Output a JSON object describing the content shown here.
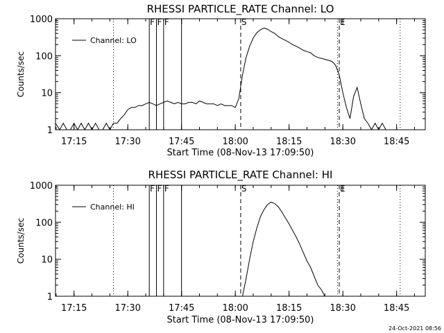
{
  "footer": {
    "timestamp": "24-Oct-2021 08:56"
  },
  "chart_data": [
    {
      "type": "line",
      "title": "RHESSI PARTICLE_RATE Channel: LO",
      "xlabel": "Start Time (08-Nov-13 17:09:50)",
      "ylabel": "Counts/sec",
      "scale": {
        "y": "log"
      },
      "xlim": [
        "17:09:50",
        "18:53:00"
      ],
      "ylim": [
        1,
        1000
      ],
      "x_ticks": [
        "17:15",
        "17:30",
        "17:45",
        "18:00",
        "18:15",
        "18:30",
        "18:45"
      ],
      "y_ticks": [
        "1",
        "10",
        "100",
        "1000"
      ],
      "legend": {
        "position": "top-left",
        "entries": [
          "Channel: LO"
        ]
      },
      "series": [
        {
          "name": "Channel: LO",
          "x": [
            "17:09:50",
            "17:11:00",
            "17:12:00",
            "17:13:00",
            "17:14:00",
            "17:15:00",
            "17:16:00",
            "17:17:00",
            "17:18:00",
            "17:19:00",
            "17:20:00",
            "17:21:00",
            "17:22:00",
            "17:23:00",
            "17:24:00",
            "17:25:00",
            "17:26:00",
            "17:27:00",
            "17:28:00",
            "17:29:00",
            "17:30:00",
            "17:31:00",
            "17:32:00",
            "17:33:00",
            "17:34:00",
            "17:35:00",
            "17:36:00",
            "17:37:00",
            "17:38:00",
            "17:39:00",
            "17:40:00",
            "17:41:00",
            "17:42:00",
            "17:43:00",
            "17:44:00",
            "17:45:00",
            "17:46:00",
            "17:47:00",
            "17:48:00",
            "17:49:00",
            "17:50:00",
            "17:51:00",
            "17:52:00",
            "17:53:00",
            "17:54:00",
            "17:55:00",
            "17:56:00",
            "17:57:00",
            "17:58:00",
            "17:59:00",
            "18:00:00",
            "18:01:00",
            "18:02:00",
            "18:03:00",
            "18:04:00",
            "18:05:00",
            "18:06:00",
            "18:07:00",
            "18:08:00",
            "18:09:00",
            "18:10:00",
            "18:11:00",
            "18:12:00",
            "18:13:00",
            "18:14:00",
            "18:15:00",
            "18:16:00",
            "18:17:00",
            "18:18:00",
            "18:19:00",
            "18:20:00",
            "18:21:00",
            "18:22:00",
            "18:23:00",
            "18:24:00",
            "18:25:00",
            "18:26:00",
            "18:27:00",
            "18:28:00",
            "18:29:00",
            "18:30:00",
            "18:31:00",
            "18:32:00",
            "18:33:00",
            "18:34:00",
            "18:35:00",
            "18:36:00",
            "18:37:00",
            "18:38:00",
            "18:39:00",
            "18:40:00",
            "18:41:00",
            "18:42:00"
          ],
          "y": [
            1.5,
            1,
            1.5,
            1,
            1,
            1.5,
            1,
            1.5,
            1,
            1.5,
            1,
            1.5,
            1,
            1,
            1.5,
            1,
            1.5,
            1.5,
            2,
            2.5,
            3.5,
            4,
            4,
            4.5,
            4.5,
            5,
            5.5,
            5,
            4.5,
            5,
            5.5,
            6,
            5.5,
            5,
            5.5,
            5,
            5,
            5.5,
            5.5,
            5,
            6,
            5.5,
            5,
            5,
            5,
            4.5,
            5,
            4.5,
            4.5,
            4.5,
            4,
            7,
            30,
            90,
            180,
            300,
            420,
            500,
            560,
            520,
            450,
            400,
            330,
            290,
            260,
            230,
            200,
            180,
            160,
            140,
            130,
            120,
            100,
            90,
            85,
            80,
            75,
            70,
            55,
            30,
            10,
            4,
            2,
            8,
            14,
            5,
            2,
            1.5,
            1,
            1.5,
            1,
            1.5,
            1
          ]
        }
      ],
      "markers": [
        {
          "x": "17:26:00",
          "style": "dotted",
          "label": ""
        },
        {
          "x": "17:36:00",
          "style": "solid",
          "label": "F"
        },
        {
          "x": "17:38:00",
          "style": "solid",
          "label": "F"
        },
        {
          "x": "17:40:00",
          "style": "solid",
          "label": "F"
        },
        {
          "x": "17:45:00",
          "style": "solid",
          "label": ""
        },
        {
          "x": "18:01:30",
          "style": "dashed",
          "label": "S"
        },
        {
          "x": "18:28:30",
          "style": "dotted",
          "label": ""
        },
        {
          "x": "18:29:00",
          "style": "dashed",
          "label": "E"
        },
        {
          "x": "18:46:00",
          "style": "dotted",
          "label": ""
        }
      ]
    },
    {
      "type": "line",
      "title": "RHESSI PARTICLE_RATE Channel: HI",
      "xlabel": "Start Time (08-Nov-13 17:09:50)",
      "ylabel": "Counts/sec",
      "scale": {
        "y": "log"
      },
      "xlim": [
        "17:09:50",
        "18:53:00"
      ],
      "ylim": [
        1,
        1000
      ],
      "x_ticks": [
        "17:15",
        "17:30",
        "17:45",
        "18:00",
        "18:15",
        "18:30",
        "18:45"
      ],
      "y_ticks": [
        "1",
        "10",
        "100",
        "1000"
      ],
      "legend": {
        "position": "top-left",
        "entries": [
          "Channel: HI"
        ]
      },
      "series": [
        {
          "name": "Channel: HI",
          "x": [
            "18:02:00",
            "18:03:00",
            "18:04:00",
            "18:05:00",
            "18:06:00",
            "18:07:00",
            "18:08:00",
            "18:09:00",
            "18:10:00",
            "18:11:00",
            "18:12:00",
            "18:13:00",
            "18:14:00",
            "18:15:00",
            "18:16:00",
            "18:17:00",
            "18:18:00",
            "18:19:00",
            "18:20:00",
            "18:21:00",
            "18:22:00",
            "18:23:00",
            "18:24:00",
            "18:25:00"
          ],
          "y": [
            1,
            3,
            10,
            30,
            70,
            140,
            220,
            300,
            350,
            320,
            260,
            190,
            130,
            90,
            60,
            40,
            25,
            15,
            9,
            6,
            3.5,
            2,
            1.5,
            1
          ]
        }
      ],
      "markers": [
        {
          "x": "17:26:00",
          "style": "dotted",
          "label": ""
        },
        {
          "x": "17:36:00",
          "style": "solid",
          "label": "F"
        },
        {
          "x": "17:38:00",
          "style": "solid",
          "label": "F"
        },
        {
          "x": "17:40:00",
          "style": "solid",
          "label": "F"
        },
        {
          "x": "17:45:00",
          "style": "solid",
          "label": ""
        },
        {
          "x": "18:01:30",
          "style": "dashed",
          "label": "S"
        },
        {
          "x": "18:28:30",
          "style": "dotted",
          "label": ""
        },
        {
          "x": "18:29:00",
          "style": "dashed",
          "label": "E"
        },
        {
          "x": "18:46:00",
          "style": "dotted",
          "label": ""
        }
      ]
    }
  ]
}
